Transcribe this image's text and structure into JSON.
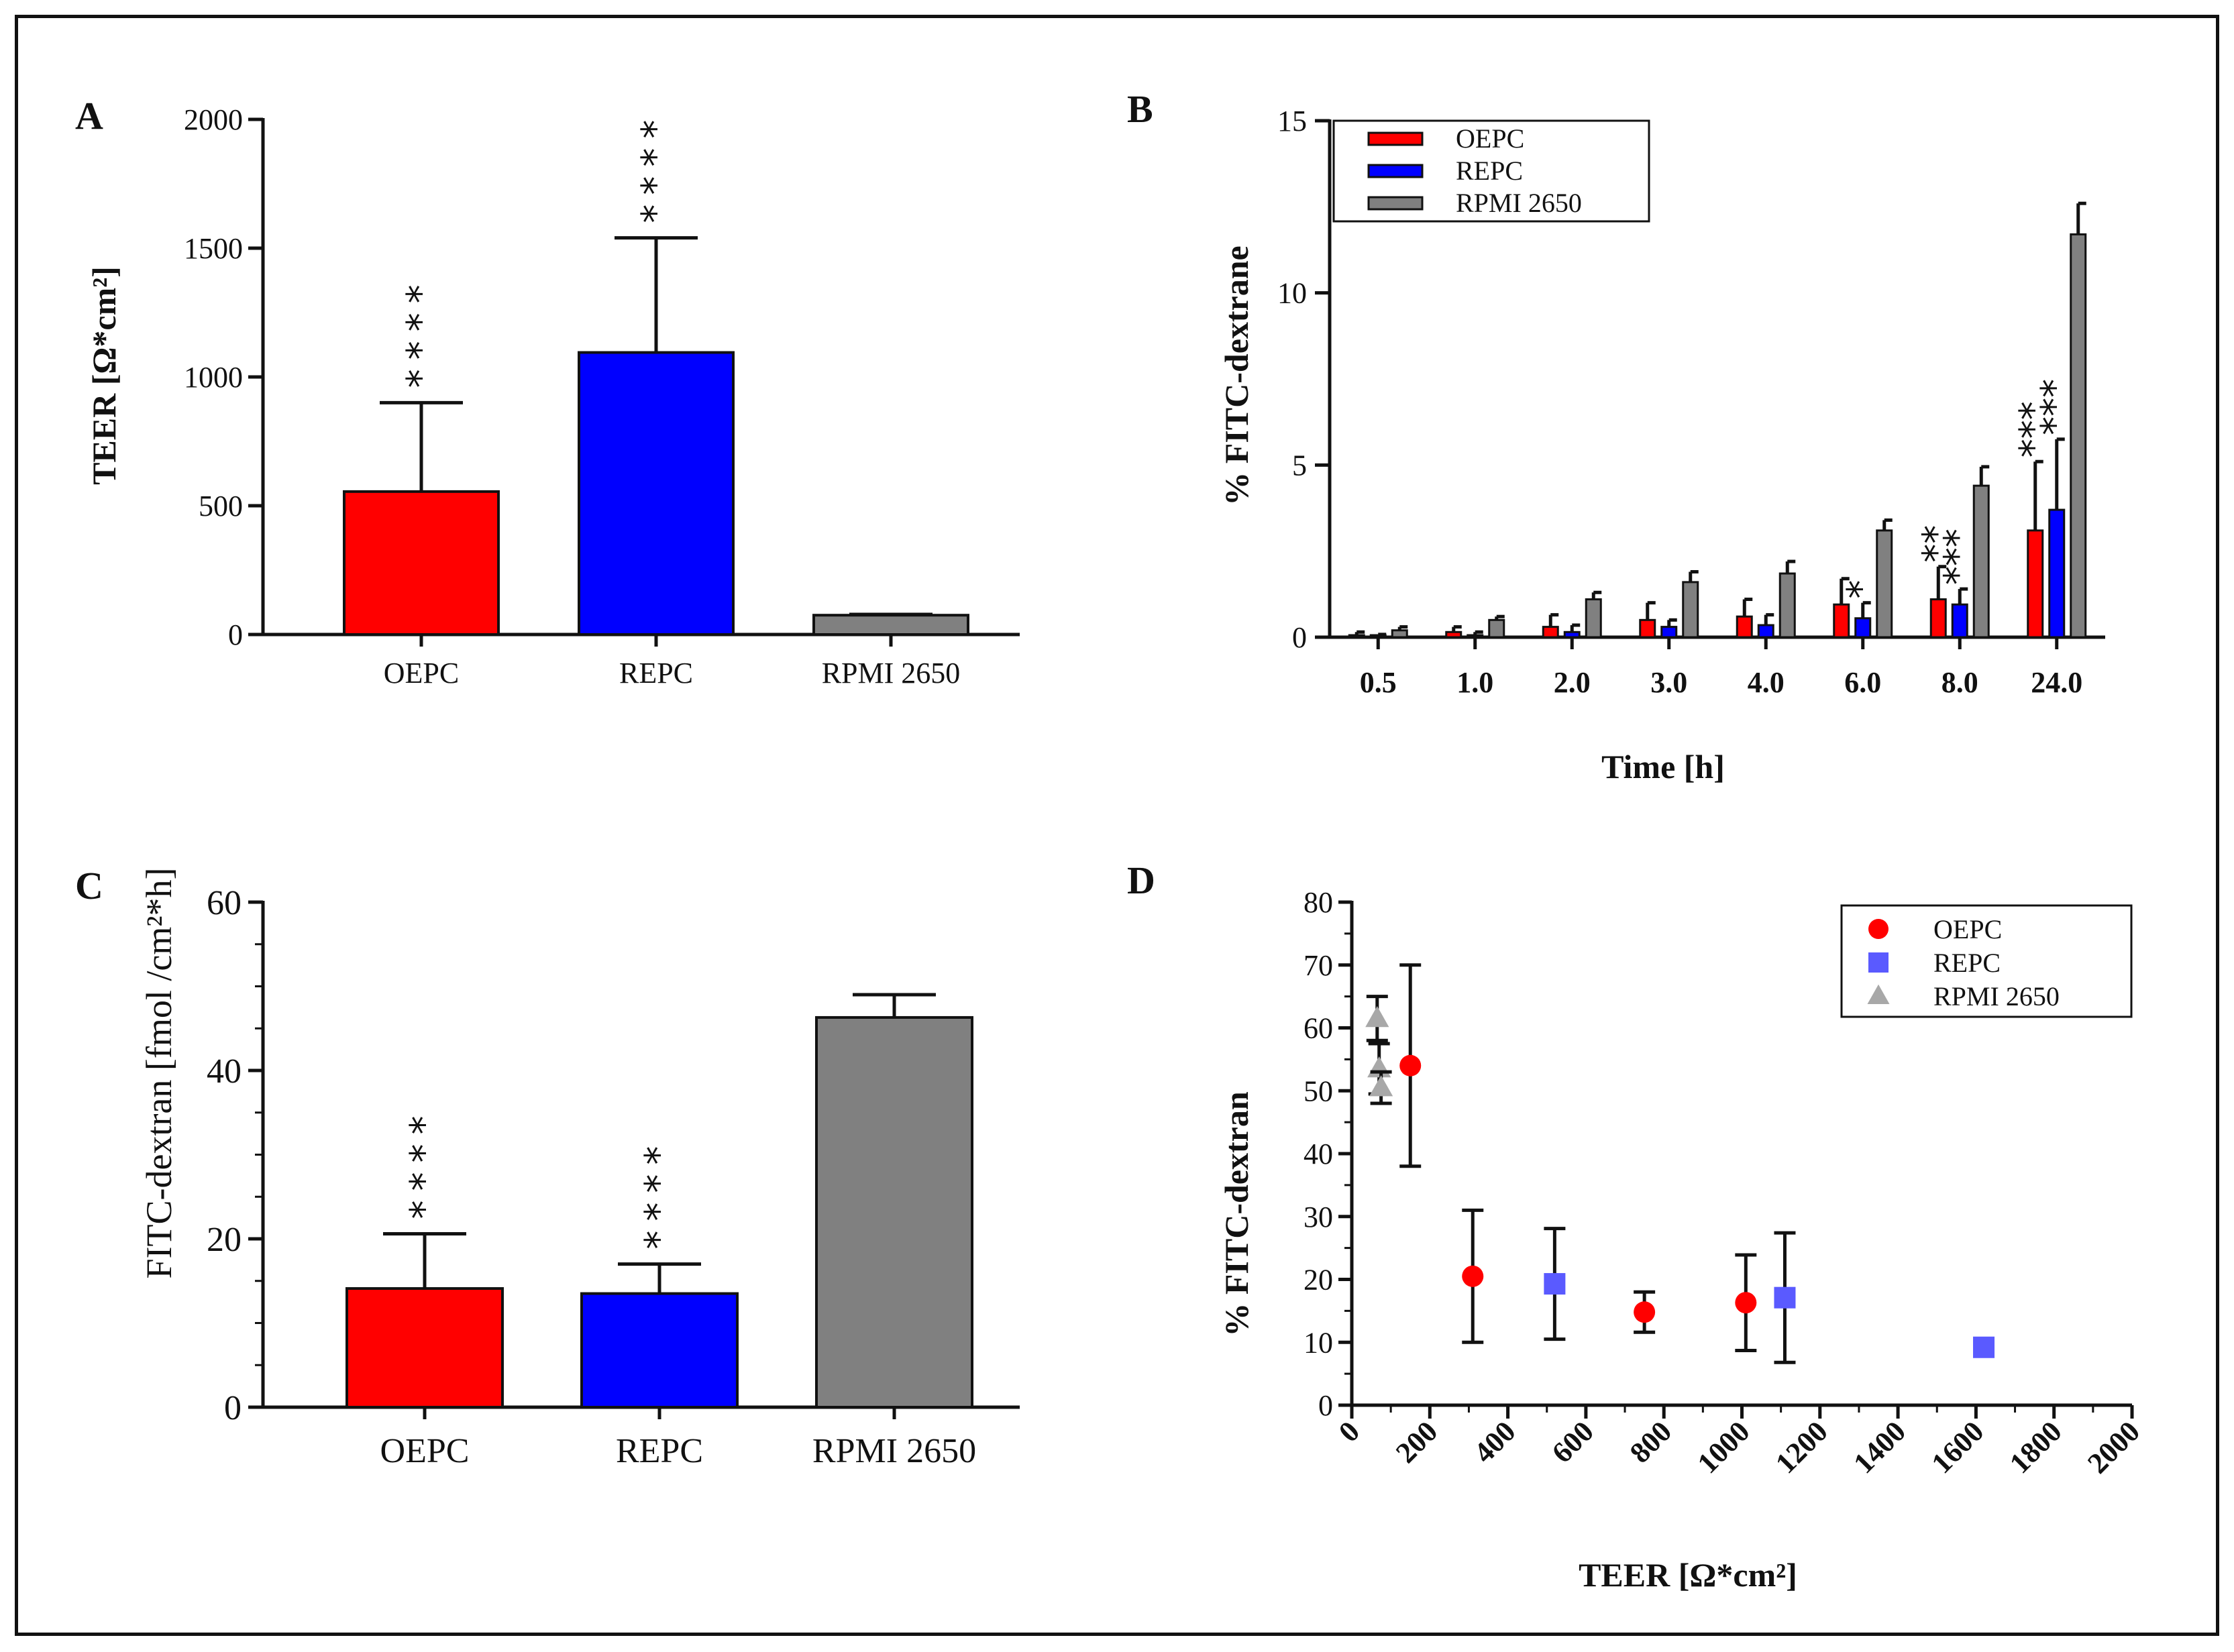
{
  "colors": {
    "OEPC": "#ff0000",
    "REPC": "#0000ff",
    "RPMI 2650": "#808080",
    "REPC_marker": "#5a5aff",
    "RPMI_marker": "#a8a8a8"
  },
  "chart_data": [
    {
      "panel": "A",
      "type": "bar",
      "title": "",
      "xlabel": "",
      "ylabel": "TEER [Ω*cm²]",
      "ylim": [
        0,
        2000
      ],
      "yticks": [
        "0",
        "500",
        "1000",
        "1500",
        "2000"
      ],
      "categories": [
        "OEPC",
        "REPC",
        "RPMI 2650"
      ],
      "values": [
        555,
        1095,
        75
      ],
      "errors": [
        345,
        445,
        3
      ],
      "significance": [
        "****",
        "****",
        ""
      ]
    },
    {
      "panel": "B",
      "type": "bar",
      "xlabel": "Time [h]",
      "ylabel": "% FITC-dextrane",
      "ylim": [
        0,
        15
      ],
      "yticks": [
        "0",
        "5",
        "10",
        "15"
      ],
      "categories": [
        "0.5",
        "1.0",
        "2.0",
        "3.0",
        "4.0",
        "6.0",
        "8.0",
        "24.0"
      ],
      "legend_position": "top-left",
      "series": [
        {
          "name": "OEPC",
          "values": [
            0.05,
            0.15,
            0.3,
            0.5,
            0.6,
            0.95,
            1.1,
            3.1
          ],
          "errors": [
            0.1,
            0.15,
            0.35,
            0.5,
            0.5,
            0.75,
            0.95,
            2.0
          ],
          "significance": [
            "",
            "",
            "",
            "",
            "",
            "",
            "**",
            "***"
          ]
        },
        {
          "name": "REPC",
          "values": [
            0.03,
            0.05,
            0.15,
            0.3,
            0.35,
            0.55,
            0.95,
            3.7
          ],
          "errors": [
            0.05,
            0.1,
            0.2,
            0.2,
            0.3,
            0.45,
            0.45,
            2.05
          ],
          "significance": [
            "",
            "",
            "",
            "",
            "",
            "*",
            "***",
            "***"
          ]
        },
        {
          "name": "RPMI 2650",
          "values": [
            0.2,
            0.5,
            1.1,
            1.6,
            1.85,
            3.1,
            4.4,
            11.7
          ],
          "errors": [
            0.1,
            0.1,
            0.2,
            0.3,
            0.35,
            0.3,
            0.55,
            0.9
          ],
          "significance": [
            "",
            "",
            "",
            "",
            "",
            "",
            "",
            ""
          ]
        }
      ]
    },
    {
      "panel": "C",
      "type": "bar",
      "xlabel": "",
      "ylabel": "FITC-dextran [fmol /cm²*h]",
      "ylim": [
        0,
        60
      ],
      "yticks": [
        "0",
        "20",
        "40",
        "60"
      ],
      "categories": [
        "OEPC",
        "REPC",
        "RPMI 2650"
      ],
      "values": [
        14.1,
        13.5,
        46.3
      ],
      "errors": [
        6.5,
        3.5,
        2.7
      ],
      "significance": [
        "****",
        "****",
        ""
      ]
    },
    {
      "panel": "D",
      "type": "scatter",
      "xlabel": "TEER [Ω*cm²]",
      "ylabel": "% FITC-dextran",
      "xlim": [
        0,
        2000
      ],
      "ylim": [
        0,
        80
      ],
      "xticks": [
        "0",
        "200",
        "400",
        "600",
        "800",
        "1000",
        "1200",
        "1400",
        "1600",
        "1800",
        "2000"
      ],
      "yticks": [
        "0",
        "10",
        "20",
        "30",
        "40",
        "50",
        "60",
        "70",
        "80"
      ],
      "legend_position": "top-right",
      "series": [
        {
          "name": "OEPC",
          "marker": "circle",
          "points": [
            {
              "x": 150,
              "y": 54,
              "err": 16
            },
            {
              "x": 310,
              "y": 20.5,
              "err": 10.5
            },
            {
              "x": 750,
              "y": 14.8,
              "err": 3.2
            },
            {
              "x": 1010,
              "y": 16.3,
              "err": 7.6
            }
          ]
        },
        {
          "name": "REPC",
          "marker": "square",
          "points": [
            {
              "x": 520,
              "y": 19.3,
              "err": 8.8
            },
            {
              "x": 1110,
              "y": 17.1,
              "err": 10.3
            },
            {
              "x": 1620,
              "y": 9.2,
              "err": 0
            }
          ]
        },
        {
          "name": "RPMI 2650",
          "marker": "triangle",
          "points": [
            {
              "x": 65,
              "y": 61.5,
              "err": 3.5
            },
            {
              "x": 70,
              "y": 53.5,
              "err": 4
            },
            {
              "x": 75,
              "y": 50.5,
              "err": 2.5
            }
          ]
        }
      ]
    }
  ]
}
